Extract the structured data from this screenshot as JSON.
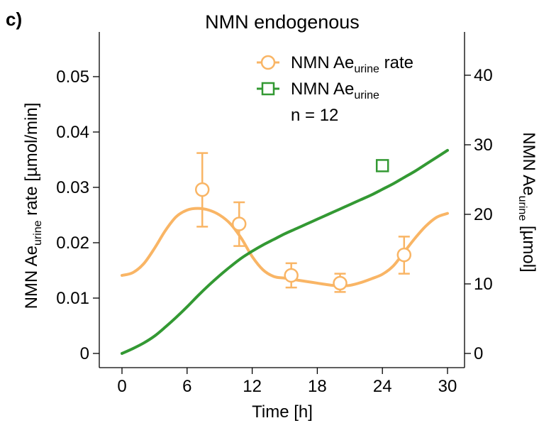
{
  "panel_label": "c)",
  "chart_data": {
    "type": "line",
    "title": "NMN endogenous",
    "xlabel": "Time [h]",
    "ylabel_left": {
      "base": "NMN Ae",
      "sub": "urine",
      "rest": " rate [µmol/min]"
    },
    "ylabel_right": {
      "base": "NMN Ae",
      "sub": "urine",
      "rest": " [µmol]"
    },
    "x_ticks": [
      0,
      6,
      12,
      18,
      24,
      30
    ],
    "xlim": [
      0,
      30
    ],
    "y_left_ticks": [
      0,
      0.01,
      0.02,
      0.03,
      0.04,
      0.05
    ],
    "y_left_tick_labels": [
      "0",
      "0.01",
      "0.02",
      "0.03",
      "0.04",
      "0.05"
    ],
    "ylim_left": [
      0,
      0.05
    ],
    "y_right_ticks": [
      0,
      10,
      20,
      30,
      40
    ],
    "ylim_right": [
      0,
      40
    ],
    "grid": false,
    "legend": {
      "placement": "top-right",
      "entries": [
        {
          "base": "NMN Ae",
          "sub": "urine",
          "rest": " rate",
          "marker": "circle",
          "color": "#F9B565"
        },
        {
          "base": "NMN Ae",
          "sub": "urine",
          "rest": "",
          "marker": "square",
          "color": "#339933"
        }
      ],
      "note": "n = 12"
    },
    "series": [
      {
        "kind": "model-line",
        "axis": "left",
        "color": "#F9B565",
        "x": [
          0,
          1,
          2,
          3,
          4,
          5,
          6,
          7,
          8,
          9,
          10,
          11,
          12,
          13,
          14,
          15,
          16,
          17,
          18,
          19,
          20,
          21,
          22,
          23,
          24,
          25,
          26,
          27,
          28,
          29,
          30
        ],
        "y": [
          0.0141,
          0.0146,
          0.0162,
          0.019,
          0.0222,
          0.0247,
          0.0259,
          0.0262,
          0.0259,
          0.025,
          0.0234,
          0.0208,
          0.0175,
          0.0151,
          0.0139,
          0.0136,
          0.0133,
          0.013,
          0.0127,
          0.0124,
          0.0122,
          0.0123,
          0.0128,
          0.0135,
          0.0143,
          0.0158,
          0.0183,
          0.0208,
          0.023,
          0.0246,
          0.0253
        ]
      },
      {
        "kind": "model-line",
        "axis": "right",
        "color": "#339933",
        "x": [
          0,
          1,
          2,
          3,
          4,
          5,
          6,
          7,
          8,
          9,
          10,
          11,
          12,
          13,
          14,
          15,
          16,
          17,
          18,
          19,
          20,
          21,
          22,
          23,
          24,
          25,
          26,
          27,
          28,
          29,
          30
        ],
        "y": [
          0.0,
          0.7,
          1.5,
          2.5,
          3.8,
          5.2,
          6.7,
          8.3,
          9.8,
          11.2,
          12.5,
          13.7,
          14.7,
          15.6,
          16.4,
          17.2,
          17.9,
          18.6,
          19.3,
          20.0,
          20.7,
          21.4,
          22.1,
          22.8,
          23.6,
          24.4,
          25.3,
          26.2,
          27.2,
          28.2,
          29.2
        ]
      },
      {
        "kind": "observed",
        "axis": "left",
        "color": "#F9B565",
        "marker": "circle",
        "x": [
          7.4,
          10.8,
          15.6,
          20.1,
          26.0
        ],
        "y": [
          0.0296,
          0.0234,
          0.0141,
          0.0127,
          0.0178
        ],
        "err_low": [
          0.0229,
          0.0194,
          0.0119,
          0.0111,
          0.0144
        ],
        "err_high": [
          0.0362,
          0.0273,
          0.0163,
          0.0144,
          0.0211
        ]
      },
      {
        "kind": "observed",
        "axis": "right",
        "color": "#339933",
        "marker": "square",
        "x": [
          24.0
        ],
        "y": [
          27.0
        ]
      }
    ]
  }
}
